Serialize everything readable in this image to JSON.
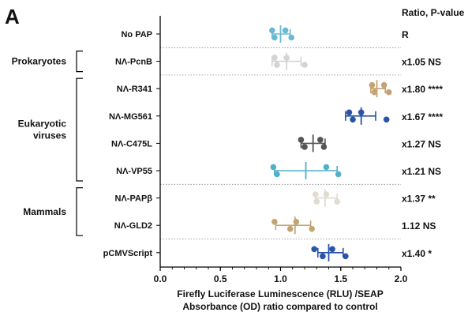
{
  "panel_label": "A",
  "chart_data": {
    "type": "scatter",
    "xlabel_lines": [
      "Firefly Luciferase Luminescence (RLU) /SEAP",
      "Absorbance (OD) ratio compared to control"
    ],
    "xlim": [
      0.0,
      2.0
    ],
    "xticks": [
      "0.0",
      "0.5",
      "1.0",
      "1.5",
      "2.0"
    ],
    "right_header": "Ratio, P-value",
    "groups": [
      {
        "label": "Prokaryotes",
        "rows": [
          1,
          1
        ]
      },
      {
        "label_lines": [
          "Eukaryotic",
          "viruses"
        ],
        "rows": [
          2,
          5
        ]
      },
      {
        "label": "Mammals",
        "rows": [
          6,
          7
        ]
      }
    ],
    "rows": [
      {
        "label": "No PAP",
        "color": "#6bb9d1",
        "points": [
          0.93,
          0.95,
          1.04,
          1.09
        ],
        "mean": 1.0,
        "err": [
          0.93,
          1.08
        ],
        "annotation": "R"
      },
      {
        "label": "NΛ-PcnB",
        "color": "#d4d4d4",
        "points": [
          0.95,
          0.97,
          1.05,
          1.2
        ],
        "mean": 1.05,
        "err": [
          0.93,
          1.17
        ],
        "annotation": "x1.05 NS"
      },
      {
        "label": "NΛ-R341",
        "color": "#c4a472",
        "points": [
          1.76,
          1.78,
          1.86,
          1.9
        ],
        "mean": 1.8,
        "err": [
          1.75,
          1.87
        ],
        "annotation": "x1.80 ****"
      },
      {
        "label": "NΛ-MG561",
        "color": "#2a54a8",
        "points": [
          1.57,
          1.6,
          1.67,
          1.88
        ],
        "mean": 1.67,
        "err": [
          1.54,
          1.79
        ],
        "annotation": "x1.67 ****"
      },
      {
        "label": "NΛ-C475L",
        "color": "#555555",
        "points": [
          1.17,
          1.2,
          1.33,
          1.36
        ],
        "mean": 1.27,
        "err": [
          1.17,
          1.37
        ],
        "annotation": "x1.27 NS"
      },
      {
        "label": "NΛ-VP55",
        "color": "#4fb0c8",
        "points": [
          0.94,
          0.97,
          1.38,
          1.48
        ],
        "mean": 1.21,
        "err": [
          0.95,
          1.47
        ],
        "annotation": "x1.21 NS"
      },
      {
        "label": "NΛ-PAPβ",
        "color": "#e0dccf",
        "points": [
          1.29,
          1.3,
          1.38,
          1.47
        ],
        "mean": 1.37,
        "err": [
          1.29,
          1.47
        ],
        "annotation": "x1.37 **"
      },
      {
        "label": "NΛ-GLD2",
        "color": "#c4a472",
        "points": [
          0.95,
          1.08,
          1.13,
          1.26
        ],
        "mean": 1.12,
        "err": [
          0.96,
          1.25
        ],
        "annotation": "1.12 NS"
      },
      {
        "label": "pCMVScript",
        "color": "#2a54a8",
        "points": [
          1.28,
          1.35,
          1.43,
          1.54
        ],
        "mean": 1.4,
        "err": [
          1.31,
          1.52
        ],
        "annotation": "x1.40 *"
      }
    ]
  }
}
